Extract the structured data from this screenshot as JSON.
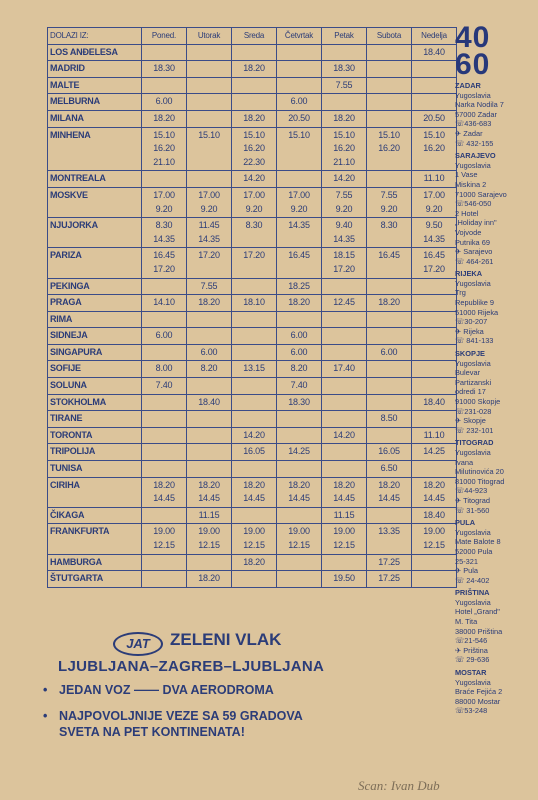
{
  "table": {
    "header": [
      "DOLAZI IZ:",
      "Poned.",
      "Utorak",
      "Sreda",
      "Četvrtak",
      "Petak",
      "Subota",
      "Nedelja"
    ],
    "rows": [
      {
        "city": "LOS ANĐELESA",
        "cells": [
          [],
          [],
          [],
          [],
          [],
          [],
          [
            "18.40"
          ]
        ]
      },
      {
        "city": "MADRID",
        "cells": [
          [
            "18.30"
          ],
          [],
          [
            "18.20"
          ],
          [],
          [
            "18.30"
          ],
          [],
          []
        ]
      },
      {
        "city": "MALTE",
        "cells": [
          [],
          [],
          [],
          [],
          [
            "7.55"
          ],
          [],
          []
        ]
      },
      {
        "city": "MELBURNA",
        "cells": [
          [
            "6.00"
          ],
          [],
          [],
          [
            "6.00"
          ],
          [],
          [],
          []
        ]
      },
      {
        "city": "MILANA",
        "cells": [
          [
            "18.20"
          ],
          [],
          [
            "18.20"
          ],
          [
            "20.50"
          ],
          [
            "18.20"
          ],
          [],
          [
            "20.50"
          ]
        ]
      },
      {
        "city": "MINHENA",
        "cells": [
          [
            "15.10",
            "16.20",
            "21.10"
          ],
          [
            "15.10"
          ],
          [
            "15.10",
            "16.20",
            "22.30"
          ],
          [
            "15.10"
          ],
          [
            "15.10",
            "16.20",
            "21.10"
          ],
          [
            "15.10",
            "16.20"
          ],
          [
            "15.10",
            "16.20"
          ]
        ]
      },
      {
        "city": "MONTREALA",
        "cells": [
          [],
          [],
          [
            "14.20"
          ],
          [],
          [
            "14.20"
          ],
          [],
          [
            "11.10"
          ]
        ]
      },
      {
        "city": "MOSKVE",
        "cells": [
          [
            "17.00",
            "9.20"
          ],
          [
            "17.00",
            "9.20"
          ],
          [
            "17.00",
            "9.20"
          ],
          [
            "17.00",
            "9.20"
          ],
          [
            "7.55",
            "9.20"
          ],
          [
            "7.55",
            "9.20"
          ],
          [
            "17.00",
            "9.20"
          ]
        ]
      },
      {
        "city": "NJUJORKA",
        "cells": [
          [
            "8.30",
            "14.35"
          ],
          [
            "11.45",
            "14.35"
          ],
          [
            "8.30"
          ],
          [
            "14.35"
          ],
          [
            "9.40",
            "14.35"
          ],
          [
            "8.30"
          ],
          [
            "9.50",
            "14.35"
          ]
        ]
      },
      {
        "city": "PARIZA",
        "cells": [
          [
            "16.45",
            "17.20"
          ],
          [
            "17.20"
          ],
          [
            "17.20"
          ],
          [
            "16.45"
          ],
          [
            "18.15",
            "17.20"
          ],
          [
            "16.45"
          ],
          [
            "16.45",
            "17.20"
          ]
        ]
      },
      {
        "city": "PEKINGA",
        "cells": [
          [],
          [
            "7.55"
          ],
          [],
          [
            "18.25"
          ],
          [],
          [],
          []
        ]
      },
      {
        "city": "PRAGA",
        "cells": [
          [
            "14.10"
          ],
          [
            "18.20"
          ],
          [
            "18.10"
          ],
          [
            "18.20"
          ],
          [
            "12.45"
          ],
          [
            "18.20"
          ],
          []
        ]
      },
      {
        "city": "RIMA",
        "cells": [
          [],
          [],
          [],
          [],
          [],
          [],
          []
        ]
      },
      {
        "city": "SIDNEJA",
        "cells": [
          [
            "6.00"
          ],
          [],
          [],
          [
            "6.00"
          ],
          [],
          [],
          []
        ]
      },
      {
        "city": "SINGAPURA",
        "cells": [
          [],
          [
            "6.00"
          ],
          [],
          [
            "6.00"
          ],
          [],
          [
            "6.00"
          ],
          []
        ]
      },
      {
        "city": "SOFIJE",
        "cells": [
          [
            "8.00"
          ],
          [
            "8.20"
          ],
          [
            "13.15"
          ],
          [
            "8.20"
          ],
          [
            "17.40"
          ],
          [],
          []
        ]
      },
      {
        "city": "SOLUNA",
        "cells": [
          [
            "7.40"
          ],
          [],
          [],
          [
            "7.40"
          ],
          [],
          [],
          []
        ]
      },
      {
        "city": "STOKHOLMA",
        "cells": [
          [],
          [
            "18.40"
          ],
          [],
          [
            "18.30"
          ],
          [],
          [],
          [
            "18.40"
          ]
        ]
      },
      {
        "city": "TIRANE",
        "cells": [
          [],
          [],
          [],
          [],
          [],
          [
            "8.50"
          ],
          []
        ]
      },
      {
        "city": "TORONTA",
        "cells": [
          [],
          [],
          [
            "14.20"
          ],
          [],
          [
            "14.20"
          ],
          [],
          [
            "11.10"
          ]
        ]
      },
      {
        "city": "TRIPOLIJA",
        "cells": [
          [],
          [],
          [
            "16.05"
          ],
          [
            "14.25"
          ],
          [],
          [
            "16.05"
          ],
          [
            "14.25"
          ]
        ]
      },
      {
        "city": "TUNISA",
        "cells": [
          [],
          [],
          [],
          [],
          [],
          [
            "6.50"
          ],
          []
        ]
      },
      {
        "city": "CIRIHA",
        "cells": [
          [
            "18.20",
            "14.45"
          ],
          [
            "18.20",
            "14.45"
          ],
          [
            "18.20",
            "14.45"
          ],
          [
            "18.20",
            "14.45"
          ],
          [
            "18.20",
            "14.45"
          ],
          [
            "18.20",
            "14.45"
          ],
          [
            "18.20",
            "14.45"
          ]
        ]
      },
      {
        "city": "ČIKAGA",
        "cells": [
          [],
          [
            "11.15"
          ],
          [],
          [],
          [
            "11.15"
          ],
          [],
          [
            "18.40"
          ]
        ]
      },
      {
        "city": "FRANKFURTA",
        "cells": [
          [
            "19.00",
            "12.15"
          ],
          [
            "19.00",
            "12.15"
          ],
          [
            "19.00",
            "12.15"
          ],
          [
            "19.00",
            "12.15"
          ],
          [
            "19.00",
            "12.15"
          ],
          [
            "13.35"
          ],
          [
            "19.00",
            "12.15"
          ]
        ]
      },
      {
        "city": "HAMBURGA",
        "cells": [
          [],
          [],
          [
            "18.20"
          ],
          [],
          [],
          [
            "17.25"
          ],
          []
        ]
      },
      {
        "city": "ŠTUTGARTA",
        "cells": [
          [],
          [
            "18.20"
          ],
          [],
          [],
          [
            "19.50"
          ],
          [
            "17.25"
          ],
          []
        ]
      }
    ]
  },
  "sidebar": {
    "logo": [
      "40",
      "60"
    ],
    "offices": [
      {
        "city": "ZADAR",
        "lines": [
          "Yugoslavia",
          "Narka Nodila 7",
          "57000 Zadar",
          "☏436-683",
          "✈ Zadar",
          "☏ 432-155"
        ]
      },
      {
        "city": "SARAJEVO",
        "lines": [
          "Yugoslavia",
          "1 Vase",
          "Miskina 2",
          "71000 Sarajevo",
          "☏546-050",
          "2 Hotel",
          "„Holiday inn\"",
          "Vojvode",
          "Putnika 69",
          "✈ Sarajevo",
          "☏ 464-261"
        ]
      },
      {
        "city": "RIJEKA",
        "lines": [
          "Yugoslavia",
          "Trg",
          "Republike 9",
          "51000 Rijeka",
          "☏30-207",
          "✈ Rijeka",
          "☏ 841-133"
        ]
      },
      {
        "city": "SKOPJE",
        "lines": [
          "Yugoslavia",
          "Bulevar",
          "Partizanski",
          "odredi 17",
          "91000 Skopje",
          "☏231-028",
          "✈ Skopje",
          "☏ 232-101"
        ]
      },
      {
        "city": "TITOGRAD",
        "lines": [
          "Yugoslavia",
          "Ivana",
          "Milutinovića 20",
          "81000 Titograd",
          "☏44-923",
          "✈ Titograd",
          "☏ 31-560"
        ]
      },
      {
        "city": "PULA",
        "lines": [
          "Yugoslavia",
          "Mate Balote 8",
          "52000 Pula",
          "25-321",
          "✈ Pula",
          "☏ 24-402"
        ]
      },
      {
        "city": "PRIŠTINA",
        "lines": [
          "Yugoslavia",
          "Hotel „Grand\"",
          "M. Tita",
          "38000 Priština",
          "☏21-546",
          "✈ Priština",
          "☏ 29-636"
        ]
      },
      {
        "city": "MOSTAR",
        "lines": [
          "Yugoslavia",
          "Braće Fejića 2",
          "88000 Mostar",
          "☏53-248"
        ]
      }
    ]
  },
  "ad": {
    "logo": "JAT",
    "title": "ZELENI VLAK",
    "route": "LJUBLJANA–ZAGREB–LJUBLJANA",
    "bullets": [
      [
        "JEDAN VOZ —— DVA AERODROMA"
      ],
      [
        "NAJPOVOLJNIJE VEZE SA 59 GRADOVA",
        "SVETA NA PET KONTINENATA!"
      ]
    ]
  },
  "credit": "Scan: Ivan Dub"
}
